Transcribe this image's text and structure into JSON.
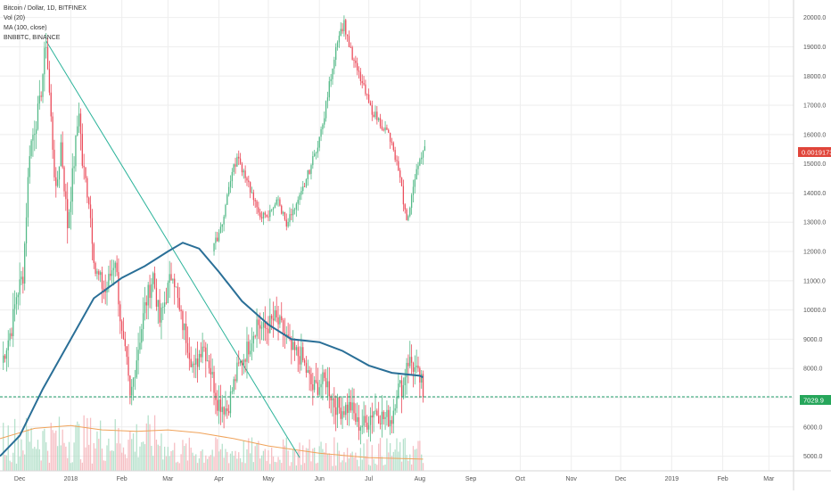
{
  "legend": {
    "main": "Bitcoin / Dollar, 1D, BITFINEX",
    "volume": "Vol (20)",
    "ma": "MA (100, close)",
    "overlay": "BNBBTC, BINANCE"
  },
  "colors": {
    "up": "#53b987",
    "down": "#eb4d5c",
    "ma": "#2a6f97",
    "trendline": "#2bb39a",
    "grid": "#eeeeee",
    "price_line": "#1f9f6b",
    "btc_badge": "#26a65b",
    "bnb_badge": "#e0453a"
  },
  "badges": {
    "btc_price": "7029.9",
    "bnbbtc_price": "0.0019173"
  },
  "chart_data": {
    "type": "candlestick",
    "title": "Bitcoin / Dollar, 1D, BITFINEX",
    "y_ticks": [
      "20000.0",
      "19000.0",
      "18000.0",
      "17000.0",
      "16000.0",
      "15000.0",
      "14000.0",
      "13000.0",
      "12000.0",
      "11000.0",
      "10000.0",
      "9000.0",
      "8000.0",
      "7000.0",
      "6000.0",
      "5000.0"
    ],
    "y_values": [
      20000,
      19000,
      18000,
      17000,
      16000,
      15000,
      14000,
      13000,
      12000,
      11000,
      10000,
      9000,
      8000,
      7000,
      6000,
      5000
    ],
    "ylim": [
      4500,
      20600
    ],
    "x_ticks": [
      "Dec",
      "2018",
      "Feb",
      "Mar",
      "Apr",
      "May",
      "Jun",
      "Jul",
      "Aug",
      "Sep",
      "Oct",
      "Nov",
      "Dec",
      "2019",
      "Feb",
      "Mar"
    ],
    "x_tick_dates": [
      "2017-12-01",
      "2018-01-01",
      "2018-02-01",
      "2018-03-01",
      "2018-04-01",
      "2018-05-01",
      "2018-06-01",
      "2018-07-01",
      "2018-08-01",
      "2018-09-01",
      "2018-10-01",
      "2018-11-01",
      "2018-12-01",
      "2019-01-01",
      "2019-02-01",
      "2019-03-01"
    ],
    "xlim": [
      "2017-11-19",
      "2019-03-16"
    ],
    "grid": true,
    "legend_position": "top-left",
    "btc_anchors": [
      [
        "2017-11-20",
        8200
      ],
      [
        "2017-11-26",
        9400
      ],
      [
        "2017-11-29",
        10500
      ],
      [
        "2017-12-03",
        11200
      ],
      [
        "2017-12-07",
        15500
      ],
      [
        "2017-12-11",
        16500
      ],
      [
        "2017-12-13",
        17000
      ],
      [
        "2017-12-17",
        19200
      ],
      [
        "2017-12-20",
        16500
      ],
      [
        "2017-12-23",
        13900
      ],
      [
        "2017-12-26",
        15700
      ],
      [
        "2017-12-30",
        12900
      ],
      [
        "2018-01-03",
        15100
      ],
      [
        "2018-01-06",
        16900
      ],
      [
        "2018-01-08",
        15000
      ],
      [
        "2018-01-12",
        13800
      ],
      [
        "2018-01-16",
        11300
      ],
      [
        "2018-01-18",
        11100
      ],
      [
        "2018-01-22",
        10600
      ],
      [
        "2018-01-28",
        11800
      ],
      [
        "2018-02-01",
        9100
      ],
      [
        "2018-02-04",
        8100
      ],
      [
        "2018-02-06",
        6900
      ],
      [
        "2018-02-10",
        8400
      ],
      [
        "2018-02-15",
        10100
      ],
      [
        "2018-02-20",
        11200
      ],
      [
        "2018-02-24",
        9600
      ],
      [
        "2018-03-04",
        11400
      ],
      [
        "2018-03-08",
        9900
      ],
      [
        "2018-03-12",
        9100
      ],
      [
        "2018-03-17",
        7900
      ],
      [
        "2018-03-22",
        8900
      ],
      [
        "2018-03-26",
        8200
      ],
      [
        "2018-03-31",
        6900
      ],
      [
        "2018-04-06",
        6600
      ],
      [
        "2018-04-12",
        7900
      ],
      [
        "2018-04-20",
        8900
      ],
      [
        "2018-04-24",
        9600
      ],
      [
        "2018-04-28",
        9300
      ],
      [
        "2018-05-05",
        9700
      ],
      [
        "2018-05-10",
        9300
      ],
      [
        "2018-05-15",
        8600
      ],
      [
        "2018-05-21",
        8400
      ],
      [
        "2018-05-28",
        7300
      ],
      [
        "2018-06-05",
        7600
      ],
      [
        "2018-06-10",
        6800
      ],
      [
        "2018-06-14",
        6600
      ],
      [
        "2018-06-20",
        6700
      ],
      [
        "2018-06-24",
        6100
      ],
      [
        "2018-06-29",
        6100
      ],
      [
        "2018-07-04",
        6600
      ],
      [
        "2018-07-10",
        6300
      ],
      [
        "2018-07-15",
        6300
      ],
      [
        "2018-07-18",
        7300
      ],
      [
        "2018-07-22",
        7400
      ],
      [
        "2018-07-24",
        8300
      ],
      [
        "2018-07-27",
        8200
      ],
      [
        "2018-07-31",
        7700
      ],
      [
        "2018-08-02",
        7500
      ],
      [
        "2018-08-03",
        7030
      ]
    ],
    "bnb_anchors": [
      [
        "2018-03-28",
        12000
      ],
      [
        "2018-04-03",
        13000
      ],
      [
        "2018-04-08",
        14500
      ],
      [
        "2018-04-12",
        15200
      ],
      [
        "2018-04-18",
        14500
      ],
      [
        "2018-04-24",
        13400
      ],
      [
        "2018-04-30",
        13100
      ],
      [
        "2018-05-06",
        13800
      ],
      [
        "2018-05-12",
        13000
      ],
      [
        "2018-05-18",
        13500
      ],
      [
        "2018-05-23",
        14300
      ],
      [
        "2018-05-29",
        15300
      ],
      [
        "2018-06-03",
        16300
      ],
      [
        "2018-06-07",
        17700
      ],
      [
        "2018-06-12",
        19300
      ],
      [
        "2018-06-16",
        19800
      ],
      [
        "2018-06-21",
        18600
      ],
      [
        "2018-06-26",
        17900
      ],
      [
        "2018-07-02",
        16900
      ],
      [
        "2018-07-08",
        16400
      ],
      [
        "2018-07-13",
        16000
      ],
      [
        "2018-07-18",
        15000
      ],
      [
        "2018-07-21",
        14100
      ],
      [
        "2018-07-24",
        13000
      ],
      [
        "2018-07-28",
        14200
      ],
      [
        "2018-08-01",
        15200
      ],
      [
        "2018-08-04",
        15600
      ]
    ],
    "ma100": [
      [
        "2017-11-19",
        5000
      ],
      [
        "2017-12-01",
        5700
      ],
      [
        "2017-12-15",
        7300
      ],
      [
        "2018-01-01",
        9000
      ],
      [
        "2018-01-15",
        10400
      ],
      [
        "2018-02-01",
        11100
      ],
      [
        "2018-02-15",
        11500
      ],
      [
        "2018-03-01",
        12000
      ],
      [
        "2018-03-10",
        12300
      ],
      [
        "2018-03-20",
        12100
      ],
      [
        "2018-04-01",
        11300
      ],
      [
        "2018-04-15",
        10300
      ],
      [
        "2018-05-01",
        9500
      ],
      [
        "2018-05-15",
        9000
      ],
      [
        "2018-06-01",
        8900
      ],
      [
        "2018-06-15",
        8600
      ],
      [
        "2018-07-01",
        8100
      ],
      [
        "2018-07-15",
        7850
      ],
      [
        "2018-08-01",
        7750
      ],
      [
        "2018-08-03",
        7700
      ]
    ],
    "volume_ma": [
      [
        "2017-11-19",
        5600
      ],
      [
        "2017-12-10",
        5950
      ],
      [
        "2018-01-01",
        6050
      ],
      [
        "2018-01-20",
        5900
      ],
      [
        "2018-02-10",
        5850
      ],
      [
        "2018-03-01",
        5900
      ],
      [
        "2018-03-20",
        5800
      ],
      [
        "2018-04-10",
        5600
      ],
      [
        "2018-05-01",
        5350
      ],
      [
        "2018-06-01",
        5100
      ],
      [
        "2018-07-01",
        4950
      ],
      [
        "2018-08-03",
        4900
      ]
    ],
    "trendline": [
      [
        "2017-12-17",
        19200
      ],
      [
        "2018-05-20",
        4950
      ]
    ],
    "horizontal_line": 7029.9
  }
}
